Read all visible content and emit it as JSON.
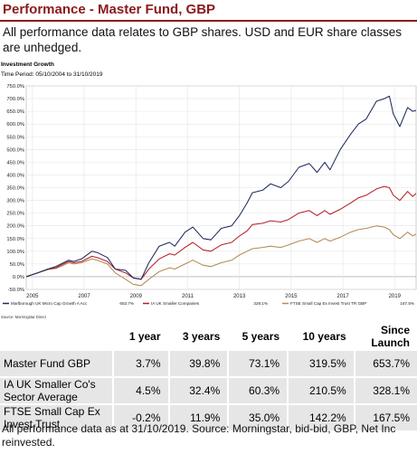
{
  "page": {
    "title": "Performance - Master Fund, GBP",
    "intro": "All performance data relates to GBP shares. USD and EUR share classes are unhedged."
  },
  "chart_data": {
    "type": "line",
    "title": "Investment Growth",
    "subtitle": "Time Period: 05/10/2004 to 31/10/2019",
    "ylim": [
      -50,
      750
    ],
    "yticks": [
      -50,
      0,
      50,
      100,
      150,
      200,
      250,
      300,
      350,
      400,
      450,
      500,
      550,
      600,
      650,
      700,
      750
    ],
    "ytick_labels": [
      "-50.0%",
      "0.0%",
      "50.0%",
      "100.0%",
      "150.0%",
      "200.0%",
      "250.0%",
      "300.0%",
      "350.0%",
      "400.0%",
      "450.0%",
      "500.0%",
      "550.0%",
      "600.0%",
      "650.0%",
      "700.0%",
      "750.0%"
    ],
    "xlim": [
      2004.76,
      2019.83
    ],
    "xticks": [
      2005,
      2007,
      2009,
      2011,
      2013,
      2015,
      2017,
      2019
    ],
    "xtick_labels": [
      "2005",
      "2007",
      "2009",
      "2011",
      "2013",
      "2015",
      "2017",
      "2019"
    ],
    "grid": true,
    "source": "Source: Morningstar Direct",
    "series": [
      {
        "name": "Marlborough UK Micro Cap Growth A Acc",
        "final_label": "653.7%",
        "color": "#1f2a5c",
        "x": [
          2004.76,
          2005.2,
          2005.6,
          2005.9,
          2006.2,
          2006.4,
          2006.6,
          2006.9,
          2007.3,
          2007.5,
          2007.9,
          2008.2,
          2008.6,
          2008.9,
          2009.2,
          2009.5,
          2009.9,
          2010.3,
          2010.5,
          2010.9,
          2011.2,
          2011.6,
          2011.9,
          2012.3,
          2012.7,
          2013.0,
          2013.3,
          2013.5,
          2013.9,
          2014.2,
          2014.6,
          2014.9,
          2015.3,
          2015.7,
          2016.0,
          2016.3,
          2016.5,
          2016.9,
          2017.3,
          2017.6,
          2017.9,
          2018.3,
          2018.6,
          2018.8,
          2018.95,
          2019.2,
          2019.5,
          2019.7,
          2019.83
        ],
        "y": [
          0,
          15,
          30,
          40,
          55,
          65,
          60,
          70,
          100,
          95,
          75,
          30,
          25,
          -5,
          -10,
          55,
          120,
          135,
          120,
          175,
          195,
          150,
          145,
          190,
          200,
          240,
          290,
          330,
          340,
          365,
          350,
          375,
          430,
          445,
          410,
          450,
          420,
          500,
          560,
          600,
          620,
          690,
          700,
          710,
          640,
          590,
          665,
          650,
          653.7
        ]
      },
      {
        "name": "IA UK Smaller Companies",
        "final_label": "328.1%",
        "color": "#b3202a",
        "x": [
          2004.76,
          2005.2,
          2005.6,
          2005.9,
          2006.2,
          2006.4,
          2006.6,
          2006.9,
          2007.3,
          2007.5,
          2007.9,
          2008.2,
          2008.6,
          2008.9,
          2009.2,
          2009.5,
          2009.9,
          2010.3,
          2010.5,
          2010.9,
          2011.2,
          2011.6,
          2011.9,
          2012.3,
          2012.7,
          2013.0,
          2013.3,
          2013.5,
          2013.9,
          2014.2,
          2014.6,
          2014.9,
          2015.3,
          2015.7,
          2016.0,
          2016.3,
          2016.5,
          2016.9,
          2017.3,
          2017.6,
          2017.9,
          2018.3,
          2018.6,
          2018.8,
          2018.95,
          2019.2,
          2019.5,
          2019.7,
          2019.83
        ],
        "y": [
          0,
          15,
          30,
          35,
          50,
          60,
          55,
          60,
          80,
          75,
          60,
          30,
          15,
          -5,
          -10,
          30,
          70,
          90,
          85,
          115,
          135,
          105,
          100,
          125,
          135,
          160,
          180,
          205,
          210,
          220,
          215,
          225,
          250,
          260,
          240,
          260,
          245,
          265,
          290,
          310,
          320,
          345,
          355,
          350,
          320,
          300,
          335,
          315,
          328.1
        ]
      },
      {
        "name": "FTSE Small Cap Ex Invest Trust TR GBP",
        "final_label": "167.5%",
        "color": "#b38b55",
        "x": [
          2004.76,
          2005.2,
          2005.6,
          2005.9,
          2006.2,
          2006.4,
          2006.6,
          2006.9,
          2007.3,
          2007.5,
          2007.9,
          2008.2,
          2008.6,
          2008.9,
          2009.2,
          2009.5,
          2009.9,
          2010.3,
          2010.5,
          2010.9,
          2011.2,
          2011.6,
          2011.9,
          2012.3,
          2012.7,
          2013.0,
          2013.3,
          2013.5,
          2013.9,
          2014.2,
          2014.6,
          2014.9,
          2015.3,
          2015.7,
          2016.0,
          2016.3,
          2016.5,
          2016.9,
          2017.3,
          2017.6,
          2017.9,
          2018.3,
          2018.6,
          2018.8,
          2018.95,
          2019.2,
          2019.5,
          2019.7,
          2019.83
        ],
        "y": [
          0,
          15,
          28,
          32,
          45,
          55,
          50,
          55,
          70,
          65,
          50,
          15,
          -10,
          -30,
          -35,
          -10,
          20,
          35,
          30,
          50,
          65,
          45,
          40,
          55,
          65,
          85,
          100,
          110,
          115,
          120,
          115,
          125,
          140,
          150,
          135,
          150,
          140,
          155,
          175,
          185,
          190,
          200,
          195,
          185,
          165,
          150,
          175,
          160,
          167.5
        ]
      }
    ]
  },
  "table": {
    "headers": [
      "",
      "1 year",
      "3 years",
      "5 years",
      "10 years",
      "Since Launch"
    ],
    "rows": [
      {
        "label": "Master Fund GBP",
        "values": [
          "3.7%",
          "39.8%",
          "73.1%",
          "319.5%",
          "653.7%"
        ]
      },
      {
        "label": "IA UK Smaller Co's Sector Average",
        "values": [
          "4.5%",
          "32.4%",
          "60.3%",
          "210.5%",
          "328.1%"
        ]
      },
      {
        "label": "FTSE Small Cap Ex Invest Trust",
        "values": [
          "-0.2%",
          "11.9%",
          "35.0%",
          "142.2%",
          "167.5%"
        ]
      }
    ]
  },
  "footnote": "All performance data as at 31/10/2019. Source: Morningstar, bid-bid, GBP, Net Inc reinvested."
}
